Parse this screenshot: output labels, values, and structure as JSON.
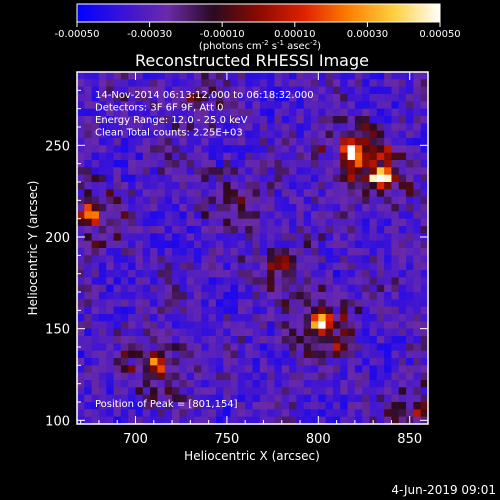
{
  "chart_data": {
    "type": "heatmap",
    "title": "Reconstructed RHESSI Image",
    "xlabel": "Heliocentric X (arcsec)",
    "ylabel": "Heliocentric Y (arcsec)",
    "xlim": [
      668,
      860
    ],
    "ylim": [
      98,
      290
    ],
    "x_ticks": [
      700,
      750,
      800,
      850
    ],
    "y_ticks": [
      100,
      150,
      200,
      250
    ],
    "colorbar": {
      "label_parts": [
        "(photons cm",
        "-2",
        " s",
        "-1",
        " asec",
        "-2",
        ")"
      ],
      "range": [
        -0.0005,
        0.0005
      ],
      "ticks": [
        "-0.00050",
        "-0.00030",
        "-0.00010",
        "0.00010",
        "0.00030",
        "0.00050"
      ],
      "colors": [
        "#0000ff",
        "#3a12d8",
        "#6a2aa8",
        "#2a0a20",
        "#8a0a00",
        "#e02000",
        "#ff8000",
        "#ffd040",
        "#ffffff"
      ]
    },
    "info_lines": [
      "14-Nov-2014 06:13:12.000 to 06:18:32.000",
      "Detectors: 3F 6F 9F, Att 0",
      "Energy Range: 12.0 - 25.0 keV",
      "Clean     Total counts: 2.25E+03"
    ],
    "peak_label": "Position of Peak = [801,154]",
    "peak": [
      801,
      154
    ],
    "sources": [
      {
        "x": 801,
        "y": 154,
        "amp": 1.0
      },
      {
        "x": 818,
        "y": 247,
        "amp": 0.95
      },
      {
        "x": 835,
        "y": 232,
        "amp": 0.85
      },
      {
        "x": 712,
        "y": 131,
        "amp": 0.8
      },
      {
        "x": 675,
        "y": 212,
        "amp": 0.7
      },
      {
        "x": 857,
        "y": 105,
        "amp": 0.55
      },
      {
        "x": 752,
        "y": 222,
        "amp": 0.45
      },
      {
        "x": 778,
        "y": 186,
        "amp": 0.4
      },
      {
        "x": 730,
        "y": 275,
        "amp": 0.35
      }
    ]
  },
  "footer": {
    "date": "4-Jun-2019 09:01"
  }
}
